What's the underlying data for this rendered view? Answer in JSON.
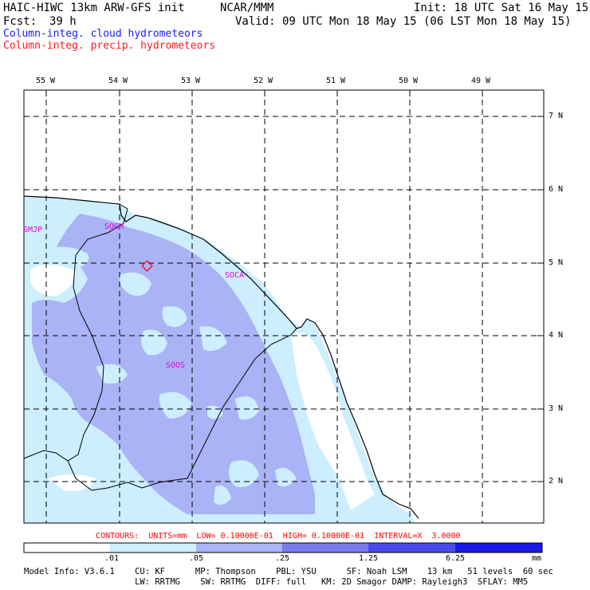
{
  "header": {
    "title_left": "HAIC-HIWC 13km ARW-GFS init",
    "org": "NCAR/MMM",
    "init": "Init: 18 UTC Sat 16 May 15",
    "fcst": "Fcst:",
    "fcst_hours": "39 h",
    "valid": "Valid: 09 UTC Mon 18 May 15 (06 LST Mon 18 May 15)",
    "field_cloud": "Column-integ. cloud hydrometeors",
    "field_precip": "Column-integ. precip. hydrometeors"
  },
  "map": {
    "lon_labels": [
      "55 W",
      "54 W",
      "53 W",
      "52 W",
      "51 W",
      "50 W",
      "49 W"
    ],
    "lat_labels": [
      "7 N",
      "6 N",
      "5 N",
      "4 N",
      "3 N",
      "2 N"
    ],
    "stations": [
      "SMJP",
      "SOGM",
      "SOCA",
      "SOOS"
    ]
  },
  "contours_line": "CONTOURS:  UNITS=mm  LOW= 0.10000E-01  HIGH= 0.10000E-01  INTERVAL=X  3.0000",
  "colorbar": {
    "tick_labels": [
      ".01",
      ".05",
      ".25",
      "1.25",
      "6.25"
    ],
    "units": "mm",
    "colors": [
      "#ffffff",
      "#cceeff",
      "#aab3f5",
      "#7a7af0",
      "#4a4aea",
      "#1a1ae8"
    ]
  },
  "model_info": {
    "line1": "Model Info: V3.6.1    CU: KF      MP: Thompson    PBL: YSU      SF: Noah LSM    13 km   51 levels  60 sec",
    "line2": "                      LW: RRTMG    SW: RRTMG  DIFF: full   KM: 2D Smagor DAMP: Rayleigh3  SFLAY: MM5"
  },
  "colors": {
    "land_light": "#cceeff",
    "land_mid": "#aab3f5",
    "marker": "#ff0000",
    "station_text": "#e000e0"
  }
}
